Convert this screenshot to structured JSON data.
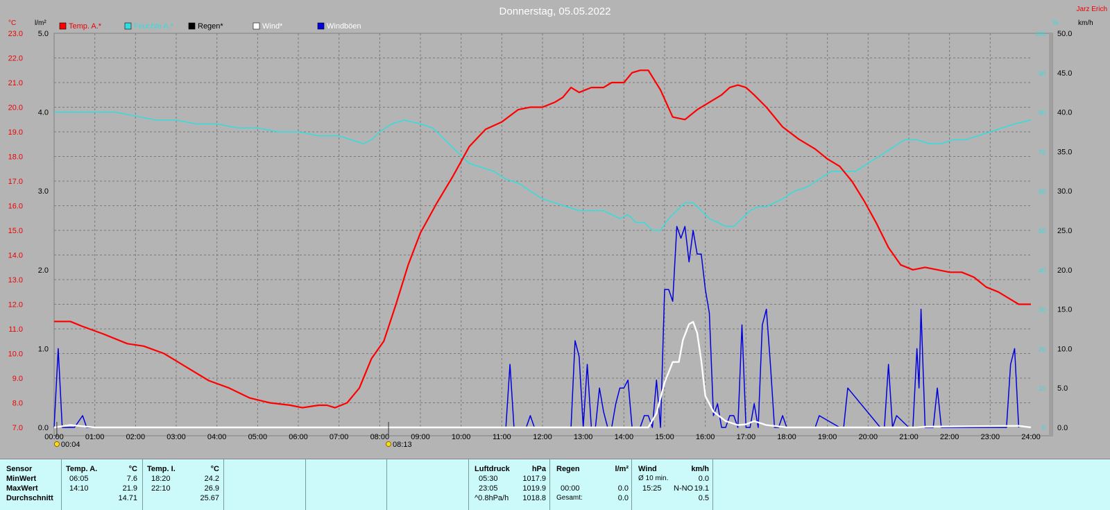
{
  "title": "Donnerstag, 05.05.2022",
  "author": "Jarz Erich",
  "units": {
    "temp": "°C",
    "rain": "l/m²",
    "hum": "%",
    "wind": "km/h"
  },
  "legend": [
    {
      "label": "Temp. A.*",
      "color": "#ff0000"
    },
    {
      "label": "Feuchte A.*",
      "color": "#33dddd"
    },
    {
      "label": "Regen*",
      "color": "#000000"
    },
    {
      "label": "Wind*",
      "color": "#ffffff"
    },
    {
      "label": "Windböen",
      "color": "#0000dd"
    }
  ],
  "markers": [
    "00:04",
    "08:13"
  ],
  "chart_data": {
    "type": "line",
    "title": "Donnerstag, 05.05.2022",
    "x_unit": "hours",
    "x_range": [
      0,
      24
    ],
    "x_ticks": [
      "00:00",
      "01:00",
      "02:00",
      "03:00",
      "04:00",
      "05:00",
      "06:00",
      "07:00",
      "08:00",
      "09:00",
      "10:00",
      "11:00",
      "12:00",
      "13:00",
      "14:00",
      "15:00",
      "16:00",
      "17:00",
      "18:00",
      "19:00",
      "20:00",
      "21:00",
      "22:00",
      "23:00",
      "24:00"
    ],
    "axes": {
      "temp": {
        "range": [
          7.0,
          23.0
        ],
        "ticks": [
          "7.0",
          "8.0",
          "9.0",
          "10.0",
          "11.0",
          "12.0",
          "13.0",
          "14.0",
          "15.0",
          "16.0",
          "17.0",
          "18.0",
          "19.0",
          "20.0",
          "21.0",
          "22.0",
          "23.0"
        ]
      },
      "rain": {
        "range": [
          0.0,
          5.0
        ],
        "ticks": [
          "0.0",
          "1.0",
          "2.0",
          "3.0",
          "4.0",
          "5.0"
        ]
      },
      "hum": {
        "range": [
          0,
          100
        ],
        "ticks": [
          "0",
          "10",
          "20",
          "30",
          "40",
          "50",
          "60",
          "70",
          "80",
          "90",
          "100"
        ]
      },
      "wind": {
        "range": [
          0.0,
          50.0
        ],
        "ticks": [
          "0.0",
          "5.0",
          "10.0",
          "15.0",
          "20.0",
          "25.0",
          "30.0",
          "35.0",
          "40.0",
          "45.0",
          "50.0"
        ]
      }
    },
    "series": [
      {
        "name": "Temp. A.*",
        "axis": "temp",
        "color": "#ff0000",
        "x": [
          0,
          0.4,
          0.7,
          1.2,
          1.8,
          2.2,
          2.7,
          3.3,
          3.8,
          4.3,
          4.8,
          5.3,
          5.8,
          6.1,
          6.5,
          6.7,
          6.9,
          7.2,
          7.5,
          7.8,
          8.1,
          8.4,
          8.7,
          9.0,
          9.4,
          9.8,
          10.2,
          10.6,
          11.0,
          11.4,
          11.7,
          12.0,
          12.3,
          12.5,
          12.7,
          12.9,
          13.2,
          13.5,
          13.7,
          14.0,
          14.2,
          14.4,
          14.6,
          14.9,
          15.2,
          15.5,
          15.8,
          16.1,
          16.4,
          16.6,
          16.8,
          17.0,
          17.2,
          17.5,
          17.9,
          18.3,
          18.7,
          19.0,
          19.3,
          19.6,
          19.9,
          20.2,
          20.5,
          20.8,
          21.1,
          21.4,
          21.7,
          22.0,
          22.3,
          22.6,
          22.9,
          23.2,
          23.5,
          23.7,
          24.0
        ],
        "values": [
          11.3,
          11.3,
          11.1,
          10.8,
          10.4,
          10.3,
          10.0,
          9.4,
          8.9,
          8.6,
          8.2,
          8.0,
          7.9,
          7.8,
          7.9,
          7.9,
          7.8,
          8.0,
          8.6,
          9.8,
          10.5,
          12.0,
          13.6,
          14.9,
          16.1,
          17.2,
          18.4,
          19.1,
          19.4,
          19.9,
          20.0,
          20.0,
          20.2,
          20.4,
          20.8,
          20.6,
          20.8,
          20.8,
          21.0,
          21.0,
          21.4,
          21.5,
          21.5,
          20.7,
          19.6,
          19.5,
          19.9,
          20.2,
          20.5,
          20.8,
          20.9,
          20.8,
          20.5,
          20.0,
          19.2,
          18.7,
          18.3,
          17.9,
          17.6,
          17.0,
          16.2,
          15.3,
          14.3,
          13.6,
          13.4,
          13.5,
          13.4,
          13.3,
          13.3,
          13.1,
          12.7,
          12.5,
          12.2,
          12.0,
          12.0
        ]
      },
      {
        "name": "Feuchte A.*",
        "axis": "hum",
        "color": "#33dddd",
        "x": [
          0,
          0.5,
          1.0,
          1.5,
          2.0,
          2.5,
          3.0,
          3.5,
          4.0,
          4.5,
          5.0,
          5.5,
          6.0,
          6.5,
          7.0,
          7.3,
          7.6,
          7.8,
          8.0,
          8.3,
          8.6,
          9.0,
          9.3,
          9.6,
          9.9,
          10.2,
          10.5,
          10.8,
          11.1,
          11.4,
          11.7,
          12.0,
          12.3,
          12.6,
          12.9,
          13.2,
          13.5,
          13.7,
          13.9,
          14.1,
          14.3,
          14.5,
          14.7,
          14.9,
          15.1,
          15.3,
          15.5,
          15.7,
          15.9,
          16.1,
          16.3,
          16.5,
          16.7,
          16.9,
          17.1,
          17.3,
          17.5,
          17.7,
          17.9,
          18.2,
          18.5,
          18.8,
          19.1,
          19.4,
          19.7,
          20.0,
          20.3,
          20.6,
          20.9,
          21.2,
          21.5,
          21.8,
          22.1,
          22.4,
          22.7,
          23.0,
          23.3,
          23.6,
          24.0
        ],
        "values": [
          80,
          80,
          80,
          80,
          79,
          78,
          78,
          77,
          77,
          76,
          76,
          75,
          75,
          74,
          74,
          73,
          72,
          73,
          75,
          77,
          78,
          77,
          76,
          73,
          70,
          67,
          66,
          65,
          63,
          62,
          60,
          58,
          57,
          56,
          55,
          55,
          55,
          54,
          53,
          54,
          52,
          52,
          50,
          50,
          53,
          55,
          57,
          57,
          55,
          53,
          52,
          51,
          51,
          53,
          55,
          56,
          56,
          57,
          58,
          60,
          61,
          63,
          65,
          65,
          65,
          67,
          69,
          71,
          73,
          73,
          72,
          72,
          73,
          73,
          74,
          75,
          76,
          77,
          78
        ]
      },
      {
        "name": "Wind*",
        "axis": "wind",
        "color": "#ffffff",
        "x": [
          0,
          0.4,
          1.0,
          14.6,
          14.8,
          15.0,
          15.2,
          15.35,
          15.45,
          15.6,
          15.7,
          15.8,
          15.9,
          16.0,
          16.2,
          16.5,
          16.8,
          17.0,
          17.2,
          17.5,
          18.0,
          21.2,
          21.4,
          23.7,
          24.0
        ],
        "values": [
          0,
          0.3,
          0,
          0,
          1.8,
          5.7,
          8.3,
          8.3,
          11.1,
          13.1,
          13.4,
          12.0,
          8.5,
          4.0,
          2.0,
          0.8,
          0.3,
          0.4,
          0.8,
          0.3,
          0,
          0,
          0.1,
          0.2,
          0
        ],
        "x_note": "hours"
      },
      {
        "name": "Windböen",
        "axis": "wind",
        "color": "#0000dd",
        "x": [
          0,
          0.1,
          0.2,
          0.3,
          0.5,
          0.7,
          0.8,
          1.0,
          11.1,
          11.2,
          11.3,
          11.4,
          11.6,
          11.7,
          11.8,
          11.9,
          12.7,
          12.8,
          12.9,
          13.0,
          13.1,
          13.2,
          13.3,
          13.4,
          13.5,
          13.6,
          13.7,
          13.8,
          13.9,
          14.0,
          14.1,
          14.2,
          14.3,
          14.4,
          14.5,
          14.6,
          14.7,
          14.8,
          14.9,
          15.0,
          15.1,
          15.2,
          15.3,
          15.4,
          15.5,
          15.6,
          15.7,
          15.8,
          15.9,
          16.0,
          16.1,
          16.2,
          16.3,
          16.4,
          16.5,
          16.6,
          16.7,
          16.8,
          16.9,
          17.0,
          17.1,
          17.2,
          17.3,
          17.4,
          17.5,
          17.6,
          17.7,
          17.8,
          17.9,
          18.0,
          18.6,
          18.7,
          18.8,
          19.3,
          19.4,
          19.5,
          20.3,
          20.4,
          20.5,
          20.6,
          20.7,
          21.0,
          21.1,
          21.2,
          21.25,
          21.3,
          21.4,
          21.6,
          21.7,
          21.8,
          23.4,
          23.5,
          23.6,
          23.7
        ],
        "values": [
          0,
          10,
          0,
          0,
          0,
          1.5,
          0,
          0,
          0,
          8,
          0,
          0,
          0,
          1.5,
          0,
          0,
          0,
          11,
          9,
          0,
          8,
          0,
          0,
          5,
          2,
          0,
          0,
          3,
          5,
          5,
          6,
          0,
          0,
          0,
          1.5,
          1.5,
          0,
          6,
          0,
          17.5,
          17.5,
          16,
          25.5,
          24,
          25.5,
          21,
          25,
          22,
          22,
          17.5,
          14.5,
          1.5,
          3,
          0,
          0,
          1.5,
          1.5,
          0,
          13,
          0,
          0,
          3,
          0,
          13,
          15,
          8,
          0,
          0,
          1.5,
          0,
          0,
          0,
          1.5,
          0,
          0,
          5,
          0,
          0,
          8,
          0,
          1.5,
          0,
          0,
          10,
          5,
          15,
          0,
          0,
          5,
          0,
          0,
          8,
          10,
          0
        ]
      }
    ],
    "legend_placement": "top"
  },
  "stats": {
    "row_labels": [
      "Sensor",
      "MinWert",
      "MaxWert",
      "Durchschnitt"
    ],
    "temp_a": {
      "title": "Temp. A.",
      "unit": "°C",
      "min_time": "06:05",
      "min": "7.6",
      "max_time": "14:10",
      "max": "21.9",
      "avg": "14.71"
    },
    "temp_i": {
      "title": "Temp. I.",
      "unit": "°C",
      "min_time": "18:20",
      "min": "24.2",
      "max_time": "22:10",
      "max": "26.9",
      "avg": "25.67"
    },
    "pressure": {
      "title": "Luftdruck",
      "unit": "hPa",
      "min_time": "05:30",
      "min": "1017.9",
      "max_time": "23:05",
      "max": "1019.9",
      "trend_label": "^0.8hPa/h",
      "current": "1018.8"
    },
    "rain": {
      "title": "Regen",
      "unit": "l/m²",
      "max_time": "00:00",
      "max": "0.0",
      "total_label": "Gesamt:",
      "total": "0.0"
    },
    "wind": {
      "title": "Wind",
      "unit": "km/h",
      "avg_label": "Ø 10 min.",
      "avg": "0.0",
      "max_time": "15:25",
      "max_dir": "N-NO",
      "max": "19.1",
      "current": "0.5"
    }
  }
}
